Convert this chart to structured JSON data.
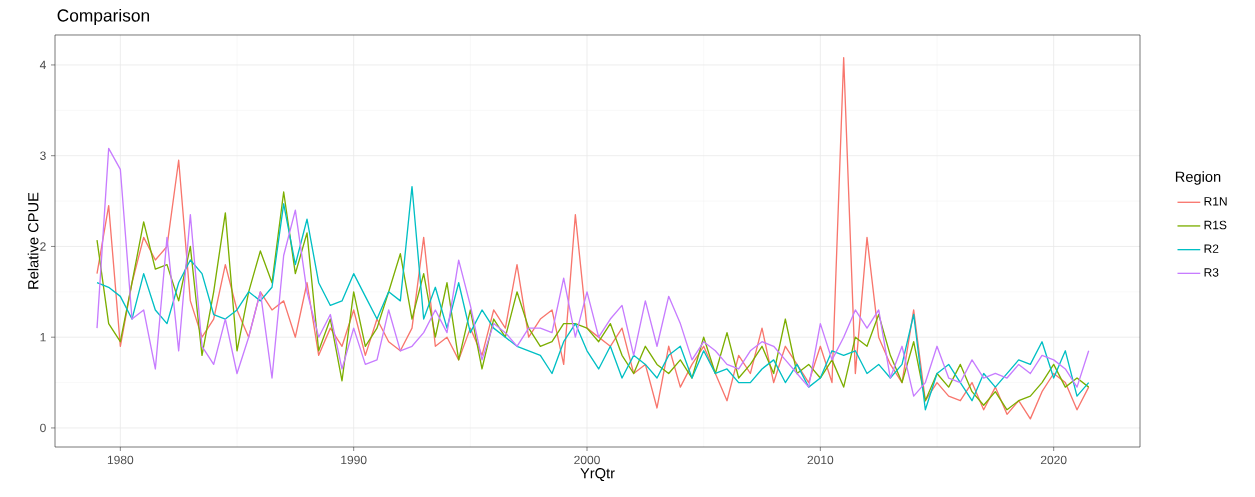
{
  "chart_data": {
    "type": "line",
    "title": "Comparison",
    "xlabel": "YrQtr",
    "ylabel": "Relative CPUE",
    "legend_title": "Region",
    "legend": "right",
    "grid": true,
    "xlim": [
      1977.2,
      2023.7
    ],
    "ylim": [
      -0.21,
      4.33
    ],
    "xticks": [
      1980,
      1990,
      2000,
      2010,
      2020
    ],
    "yticks": [
      0,
      1,
      2,
      3,
      4
    ],
    "x": [
      1979.0,
      1979.5,
      1980.0,
      1980.5,
      1981.0,
      1981.5,
      1982.0,
      1982.5,
      1983.0,
      1983.5,
      1984.0,
      1984.5,
      1985.0,
      1985.5,
      1986.0,
      1986.5,
      1987.0,
      1987.5,
      1988.0,
      1988.5,
      1989.0,
      1989.5,
      1990.0,
      1990.5,
      1991.0,
      1991.5,
      1992.0,
      1992.5,
      1993.0,
      1993.5,
      1994.0,
      1994.5,
      1995.0,
      1995.5,
      1996.0,
      1996.5,
      1997.0,
      1997.5,
      1998.0,
      1998.5,
      1999.0,
      1999.5,
      2000.0,
      2000.5,
      2001.0,
      2001.5,
      2002.0,
      2002.5,
      2003.0,
      2003.5,
      2004.0,
      2004.5,
      2005.0,
      2005.5,
      2006.0,
      2006.5,
      2007.0,
      2007.5,
      2008.0,
      2008.5,
      2009.0,
      2009.5,
      2010.0,
      2010.5,
      2011.0,
      2011.5,
      2012.0,
      2012.5,
      2013.0,
      2013.5,
      2014.0,
      2014.5,
      2015.0,
      2015.5,
      2016.0,
      2016.5,
      2017.0,
      2017.5,
      2018.0,
      2018.5,
      2019.0,
      2019.5,
      2020.0,
      2020.5,
      2021.0,
      2021.5
    ],
    "series": [
      {
        "name": "R1N",
        "color": "#f8766d",
        "values": [
          1.7,
          2.45,
          0.9,
          1.6,
          2.1,
          1.85,
          2.0,
          2.95,
          1.4,
          1.0,
          1.2,
          1.8,
          1.3,
          1.0,
          1.5,
          1.3,
          1.4,
          1.0,
          1.6,
          0.8,
          1.1,
          0.9,
          1.3,
          0.8,
          1.2,
          0.95,
          0.85,
          1.1,
          2.1,
          0.9,
          1.0,
          0.75,
          1.1,
          0.8,
          1.3,
          1.1,
          1.8,
          1.0,
          1.2,
          1.3,
          0.7,
          2.35,
          1.1,
          1.0,
          0.9,
          1.1,
          0.6,
          0.7,
          0.22,
          0.9,
          0.45,
          0.7,
          0.9,
          0.6,
          0.3,
          0.8,
          0.6,
          1.1,
          0.5,
          0.9,
          0.7,
          0.5,
          0.9,
          0.5,
          4.08,
          0.6,
          2.1,
          1.0,
          0.7,
          0.5,
          1.3,
          0.3,
          0.5,
          0.35,
          0.3,
          0.5,
          0.2,
          0.45,
          0.15,
          0.3,
          0.1,
          0.4,
          0.6,
          0.5,
          0.2,
          0.45
        ]
      },
      {
        "name": "R1S",
        "color": "#7cae00",
        "values": [
          2.07,
          1.15,
          0.95,
          1.6,
          2.27,
          1.75,
          1.8,
          1.4,
          2.0,
          0.8,
          1.5,
          2.37,
          0.85,
          1.5,
          1.95,
          1.6,
          2.6,
          1.7,
          2.15,
          0.85,
          1.2,
          0.52,
          1.5,
          0.9,
          1.1,
          1.5,
          1.92,
          1.2,
          1.7,
          1.0,
          1.6,
          0.75,
          1.3,
          0.65,
          1.2,
          1.0,
          1.5,
          1.1,
          0.9,
          0.95,
          1.15,
          1.15,
          1.1,
          0.95,
          1.15,
          0.8,
          0.6,
          0.9,
          0.7,
          0.6,
          0.75,
          0.55,
          1.0,
          0.6,
          1.05,
          0.55,
          0.7,
          0.9,
          0.6,
          1.2,
          0.6,
          0.7,
          0.55,
          0.75,
          0.45,
          1.0,
          0.9,
          1.25,
          0.8,
          0.5,
          0.95,
          0.3,
          0.6,
          0.45,
          0.7,
          0.4,
          0.25,
          0.4,
          0.2,
          0.3,
          0.35,
          0.5,
          0.7,
          0.45,
          0.55,
          0.45
        ]
      },
      {
        "name": "R2",
        "color": "#00bfc4",
        "values": [
          1.6,
          1.55,
          1.45,
          1.2,
          1.7,
          1.3,
          1.15,
          1.6,
          1.85,
          1.7,
          1.25,
          1.2,
          1.3,
          1.5,
          1.4,
          1.55,
          2.47,
          1.8,
          2.3,
          1.6,
          1.35,
          1.4,
          1.7,
          1.45,
          1.2,
          1.5,
          1.4,
          2.66,
          1.2,
          1.55,
          1.1,
          1.6,
          1.05,
          1.3,
          1.1,
          1.0,
          0.9,
          0.85,
          0.8,
          0.6,
          0.95,
          1.15,
          0.85,
          0.65,
          0.9,
          0.55,
          0.8,
          0.7,
          0.55,
          0.8,
          0.9,
          0.55,
          0.85,
          0.6,
          0.65,
          0.5,
          0.5,
          0.65,
          0.75,
          0.5,
          0.7,
          0.45,
          0.55,
          0.85,
          0.8,
          0.85,
          0.6,
          0.7,
          0.55,
          0.7,
          1.25,
          0.2,
          0.6,
          0.7,
          0.5,
          0.3,
          0.6,
          0.45,
          0.6,
          0.75,
          0.7,
          0.95,
          0.55,
          0.85,
          0.35,
          0.5
        ]
      },
      {
        "name": "R3",
        "color": "#c77cff",
        "values": [
          1.1,
          3.08,
          2.85,
          1.2,
          1.3,
          0.65,
          2.1,
          0.85,
          2.35,
          0.9,
          0.7,
          1.2,
          0.6,
          1.0,
          1.5,
          0.55,
          1.9,
          2.4,
          1.5,
          1.0,
          1.25,
          0.65,
          1.1,
          0.7,
          0.75,
          1.3,
          0.85,
          0.9,
          1.05,
          1.3,
          1.05,
          1.85,
          1.35,
          0.75,
          1.15,
          1.05,
          0.9,
          1.1,
          1.1,
          1.05,
          1.65,
          1.0,
          1.5,
          1.0,
          1.2,
          1.35,
          0.8,
          1.4,
          0.9,
          1.45,
          1.15,
          0.75,
          0.95,
          0.85,
          0.7,
          0.65,
          0.85,
          0.95,
          0.9,
          0.75,
          0.6,
          0.45,
          1.15,
          0.75,
          1.0,
          1.3,
          1.1,
          1.3,
          0.55,
          0.9,
          0.35,
          0.5,
          0.9,
          0.55,
          0.5,
          0.75,
          0.55,
          0.6,
          0.55,
          0.7,
          0.6,
          0.8,
          0.75,
          0.65,
          0.45,
          0.85
        ]
      }
    ]
  }
}
